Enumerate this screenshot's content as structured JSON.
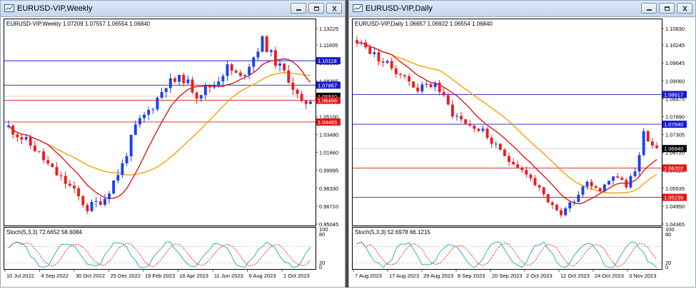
{
  "windows": [
    {
      "title": "EURUSD-VIP,Weekly",
      "info": "EURUSD-VIP,Weekly  1.07209 1.07557 1.06554 1.06840",
      "stoch": "Stoch(5,3,3) 72.6652 58.6084",
      "price_ticks": [
        "1.13225",
        "1.11605",
        "1.09985",
        "1.08365",
        "1.06720",
        "1.05100",
        "1.03480",
        "1.01660",
        "0.99995",
        "0.98330",
        "0.96710",
        "0.95045"
      ],
      "hlines": [
        {
          "label": "1.10118",
          "value": 1.10118,
          "color": "#1a1ad0"
        },
        {
          "label": "1.07867",
          "value": 1.07867,
          "color": "#1a1ad0"
        },
        {
          "label": "1.06840",
          "value": 1.0684,
          "color": "#000000"
        },
        {
          "label": "1.06466",
          "value": 1.06466,
          "color": "#e01818"
        },
        {
          "label": "1.04465",
          "value": 1.04465,
          "color": "#e01818"
        }
      ],
      "time_ticks": [
        "10 Jul 2022",
        "4 Sep 2022",
        "30 Oct 2022",
        "25 Dec 2022",
        "19 Feb 2023",
        "16 Apr 2023",
        "11 Jun 2023",
        "6 Aug 2023",
        "1 Oct 2023"
      ],
      "stoch_ticks": [
        "100",
        "80",
        "20",
        "0"
      ]
    },
    {
      "title": "EURUSD-VIP,Daily",
      "info": "EURUSD-VIP,Daily  1.06657 1.06922 1.06554 1.06840",
      "stoch": "Stoch(5,3,3) 52.6978 66.1215",
      "price_ticks": [
        "1.10830",
        "1.10245",
        "1.09645",
        "1.09060",
        "1.08475",
        "1.07890",
        "1.07305",
        "1.06720",
        "1.06120",
        "1.05535",
        "1.04950",
        "1.04365"
      ],
      "hlines": [
        {
          "label": "1.08617",
          "value": 1.08617,
          "color": "#1a1ad0"
        },
        {
          "label": "1.07640",
          "value": 1.0764,
          "color": "#1a1ad0"
        },
        {
          "label": "1.06840",
          "value": 1.0684,
          "color": "#000000"
        },
        {
          "label": "1.06202",
          "value": 1.06202,
          "color": "#e01818"
        },
        {
          "label": "1.05239",
          "value": 1.05239,
          "color": "#e01818"
        }
      ],
      "time_ticks": [
        "7 Aug 2023",
        "17 Aug 2023",
        "29 Aug 2023",
        "8 Sep 2023",
        "20 Sep 2023",
        "2 Oct 2023",
        "12 Oct 2023",
        "24 Oct 2023",
        "3 Nov 2023"
      ],
      "stoch_ticks": [
        "100",
        "80",
        "20",
        "0"
      ]
    }
  ],
  "colors": {
    "bull": "#1f3ff0",
    "bear": "#ee1c1c",
    "ma_green": "#1e7f1e",
    "ma_orange": "#f5a300",
    "ma_red": "#e01818",
    "stoch_main": "#33b0bf",
    "stoch_signal": "#e02020"
  },
  "icons": [
    "chart-window-icon",
    "minimize-icon",
    "restore-icon",
    "close-icon"
  ]
}
